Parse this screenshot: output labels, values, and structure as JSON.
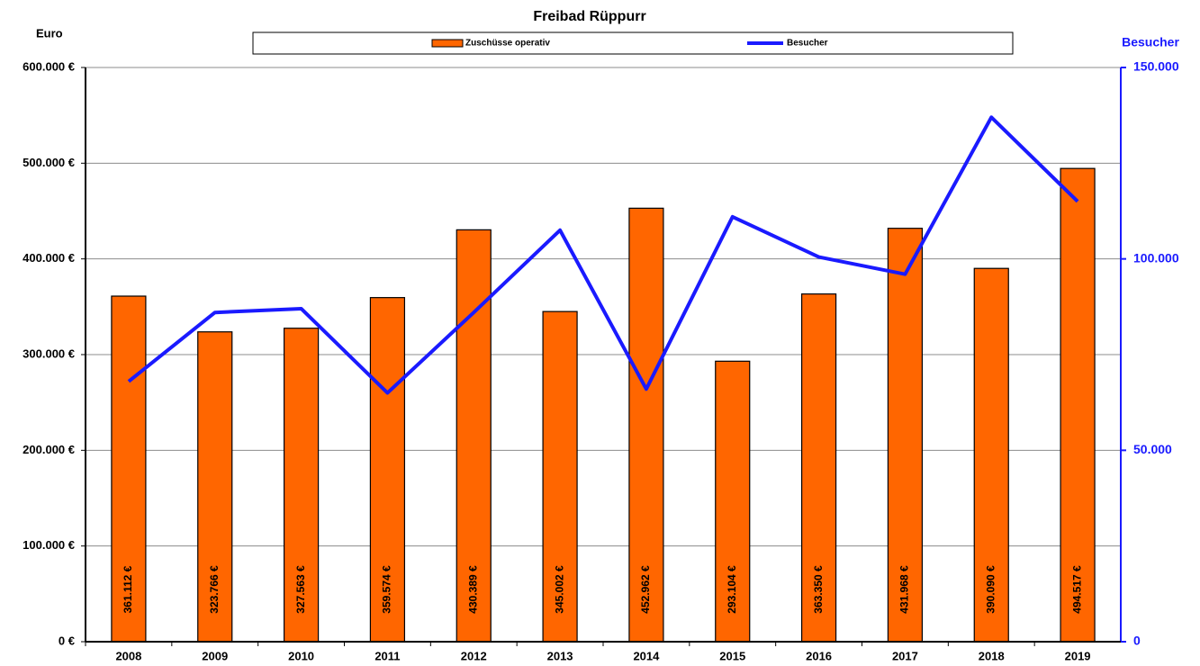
{
  "chart_data": {
    "type": "bar-line",
    "title": "Freibad Rüppurr",
    "y_label": "Euro",
    "y2_label": "Besucher",
    "categories": [
      "2008",
      "2009",
      "2010",
      "2011",
      "2012",
      "2013",
      "2014",
      "2015",
      "2016",
      "2017",
      "2018",
      "2019"
    ],
    "series": [
      {
        "name": "Zuschüsse operativ",
        "type": "bar",
        "color": "#ff6600",
        "values": [
          361112,
          323766,
          327563,
          359574,
          430389,
          345002,
          452962,
          293104,
          363350,
          431968,
          390090,
          494517
        ],
        "value_labels": [
          "361.112 €",
          "323.766 €",
          "327.563 €",
          "359.574 €",
          "430.389 €",
          "345.002 €",
          "452.962 €",
          "293.104 €",
          "363.350 €",
          "431.968 €",
          "390.090 €",
          "494.517 €"
        ]
      },
      {
        "name": "Besucher",
        "type": "line",
        "axis": "y2",
        "color": "#1a1aff",
        "values": [
          68000,
          86000,
          87000,
          65000,
          86000,
          107500,
          66000,
          111000,
          100500,
          96000,
          137000,
          115000
        ]
      }
    ],
    "ylim": [
      0,
      600000
    ],
    "yticks": [
      {
        "value": 0,
        "label": "0 €"
      },
      {
        "value": 100000,
        "label": "100.000 €"
      },
      {
        "value": 200000,
        "label": "200.000 €"
      },
      {
        "value": 300000,
        "label": "300.000 €"
      },
      {
        "value": 400000,
        "label": "400.000 €"
      },
      {
        "value": 500000,
        "label": "500.000 €"
      },
      {
        "value": 600000,
        "label": "600.000 €"
      }
    ],
    "y2lim": [
      0,
      150000
    ],
    "y2ticks": [
      0,
      {
        "value": 50000,
        "label": "50.000"
      },
      {
        "value": 100000,
        "label": "100.000"
      },
      {
        "value": 150000,
        "label": "150.000"
      }
    ],
    "grid": true
  }
}
